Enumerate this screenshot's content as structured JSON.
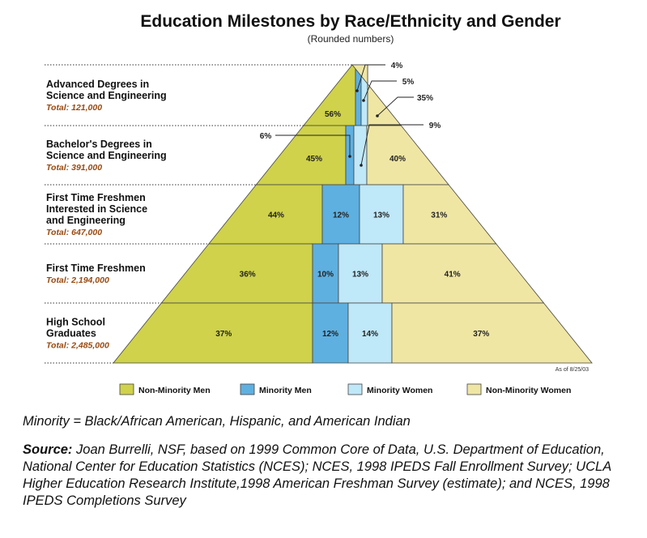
{
  "chart_data": {
    "type": "pyramid",
    "title": "Education Milestones by Race/Ethnicity and Gender",
    "subtitle": "(Rounded numbers)",
    "as_of": "As of 8/25/03",
    "series": [
      {
        "name": "Non-Minority Men",
        "color": "#cfd24a"
      },
      {
        "name": "Minority Men",
        "color": "#5eb0e0"
      },
      {
        "name": "Minority Women",
        "color": "#bfe8f8"
      },
      {
        "name": "Non-Minority Women",
        "color": "#efe6a4"
      }
    ],
    "levels": [
      {
        "label_lines": [
          "Advanced Degrees in",
          "Science and Engineering"
        ],
        "total": "Total: 121,000",
        "values": [
          56,
          4,
          5,
          35
        ]
      },
      {
        "label_lines": [
          "Bachelor's Degrees in",
          "Science and Engineering"
        ],
        "total": "Total: 391,000",
        "values": [
          45,
          6,
          9,
          40
        ]
      },
      {
        "label_lines": [
          "First Time Freshmen",
          "Interested in Science",
          "and Engineering"
        ],
        "total": "Total: 647,000",
        "values": [
          44,
          12,
          13,
          31
        ]
      },
      {
        "label_lines": [
          "First Time Freshmen"
        ],
        "total": "Total: 2,194,000",
        "values": [
          36,
          10,
          13,
          41
        ]
      },
      {
        "label_lines": [
          "High School",
          "Graduates"
        ],
        "total": "Total: 2,485,000",
        "values": [
          37,
          12,
          14,
          37
        ]
      }
    ]
  },
  "notes": {
    "minority_definition": "Minority = Black/African American, Hispanic, and American Indian",
    "source_label": "Source:",
    "source_text": " Joan Burrelli, NSF, based on 1999 Common Core of Data, U.S. Department of Education, National Center for Education Statistics (NCES); NCES, 1998 IPEDS Fall Enrollment Survey; UCLA Higher Education Research Institute,1998 American Freshman Survey (estimate); and NCES, 1998 IPEDS Completions Survey"
  }
}
